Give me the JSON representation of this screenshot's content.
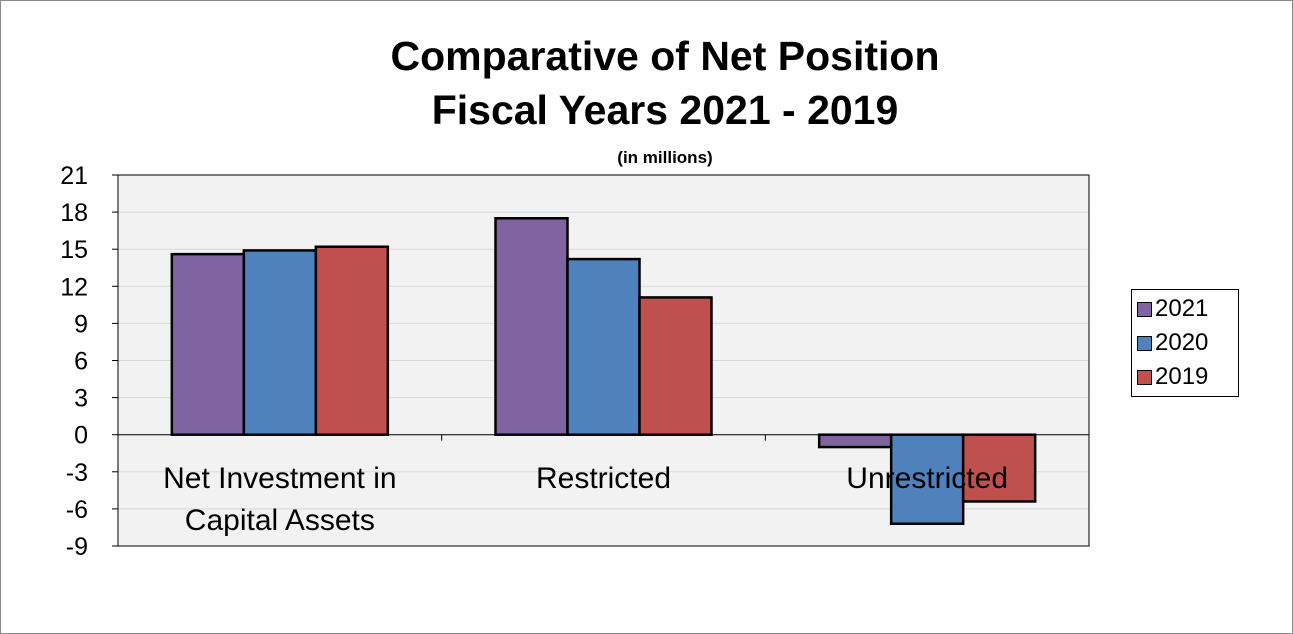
{
  "chart_data": {
    "type": "bar",
    "title": "Comparative of Net Position",
    "title_line2": "Fiscal Years 2021 - 2019",
    "subtitle": "(in millions)",
    "categories": [
      "Net Investment in Capital Assets",
      "Restricted",
      "Unrestricted"
    ],
    "category_lines": [
      [
        "Net Investment in",
        "Capital Assets"
      ],
      [
        "Restricted"
      ],
      [
        "Unrestricted"
      ]
    ],
    "series": [
      {
        "name": "2021",
        "color": "#8064a2",
        "values": [
          14.6,
          17.5,
          -1.0
        ]
      },
      {
        "name": "2020",
        "color": "#4f81bd",
        "values": [
          14.9,
          14.2,
          -7.2
        ]
      },
      {
        "name": "2019",
        "color": "#c0504d",
        "values": [
          15.2,
          11.1,
          -5.4
        ]
      }
    ],
    "ylim": [
      -9,
      21
    ],
    "yticks": [
      "21",
      "18",
      "15",
      "12",
      "9",
      "6",
      "3",
      "0",
      "-3",
      "-6",
      "-9"
    ],
    "grid": true,
    "legend_position": "right",
    "plot_background": "#f2f2f2"
  }
}
